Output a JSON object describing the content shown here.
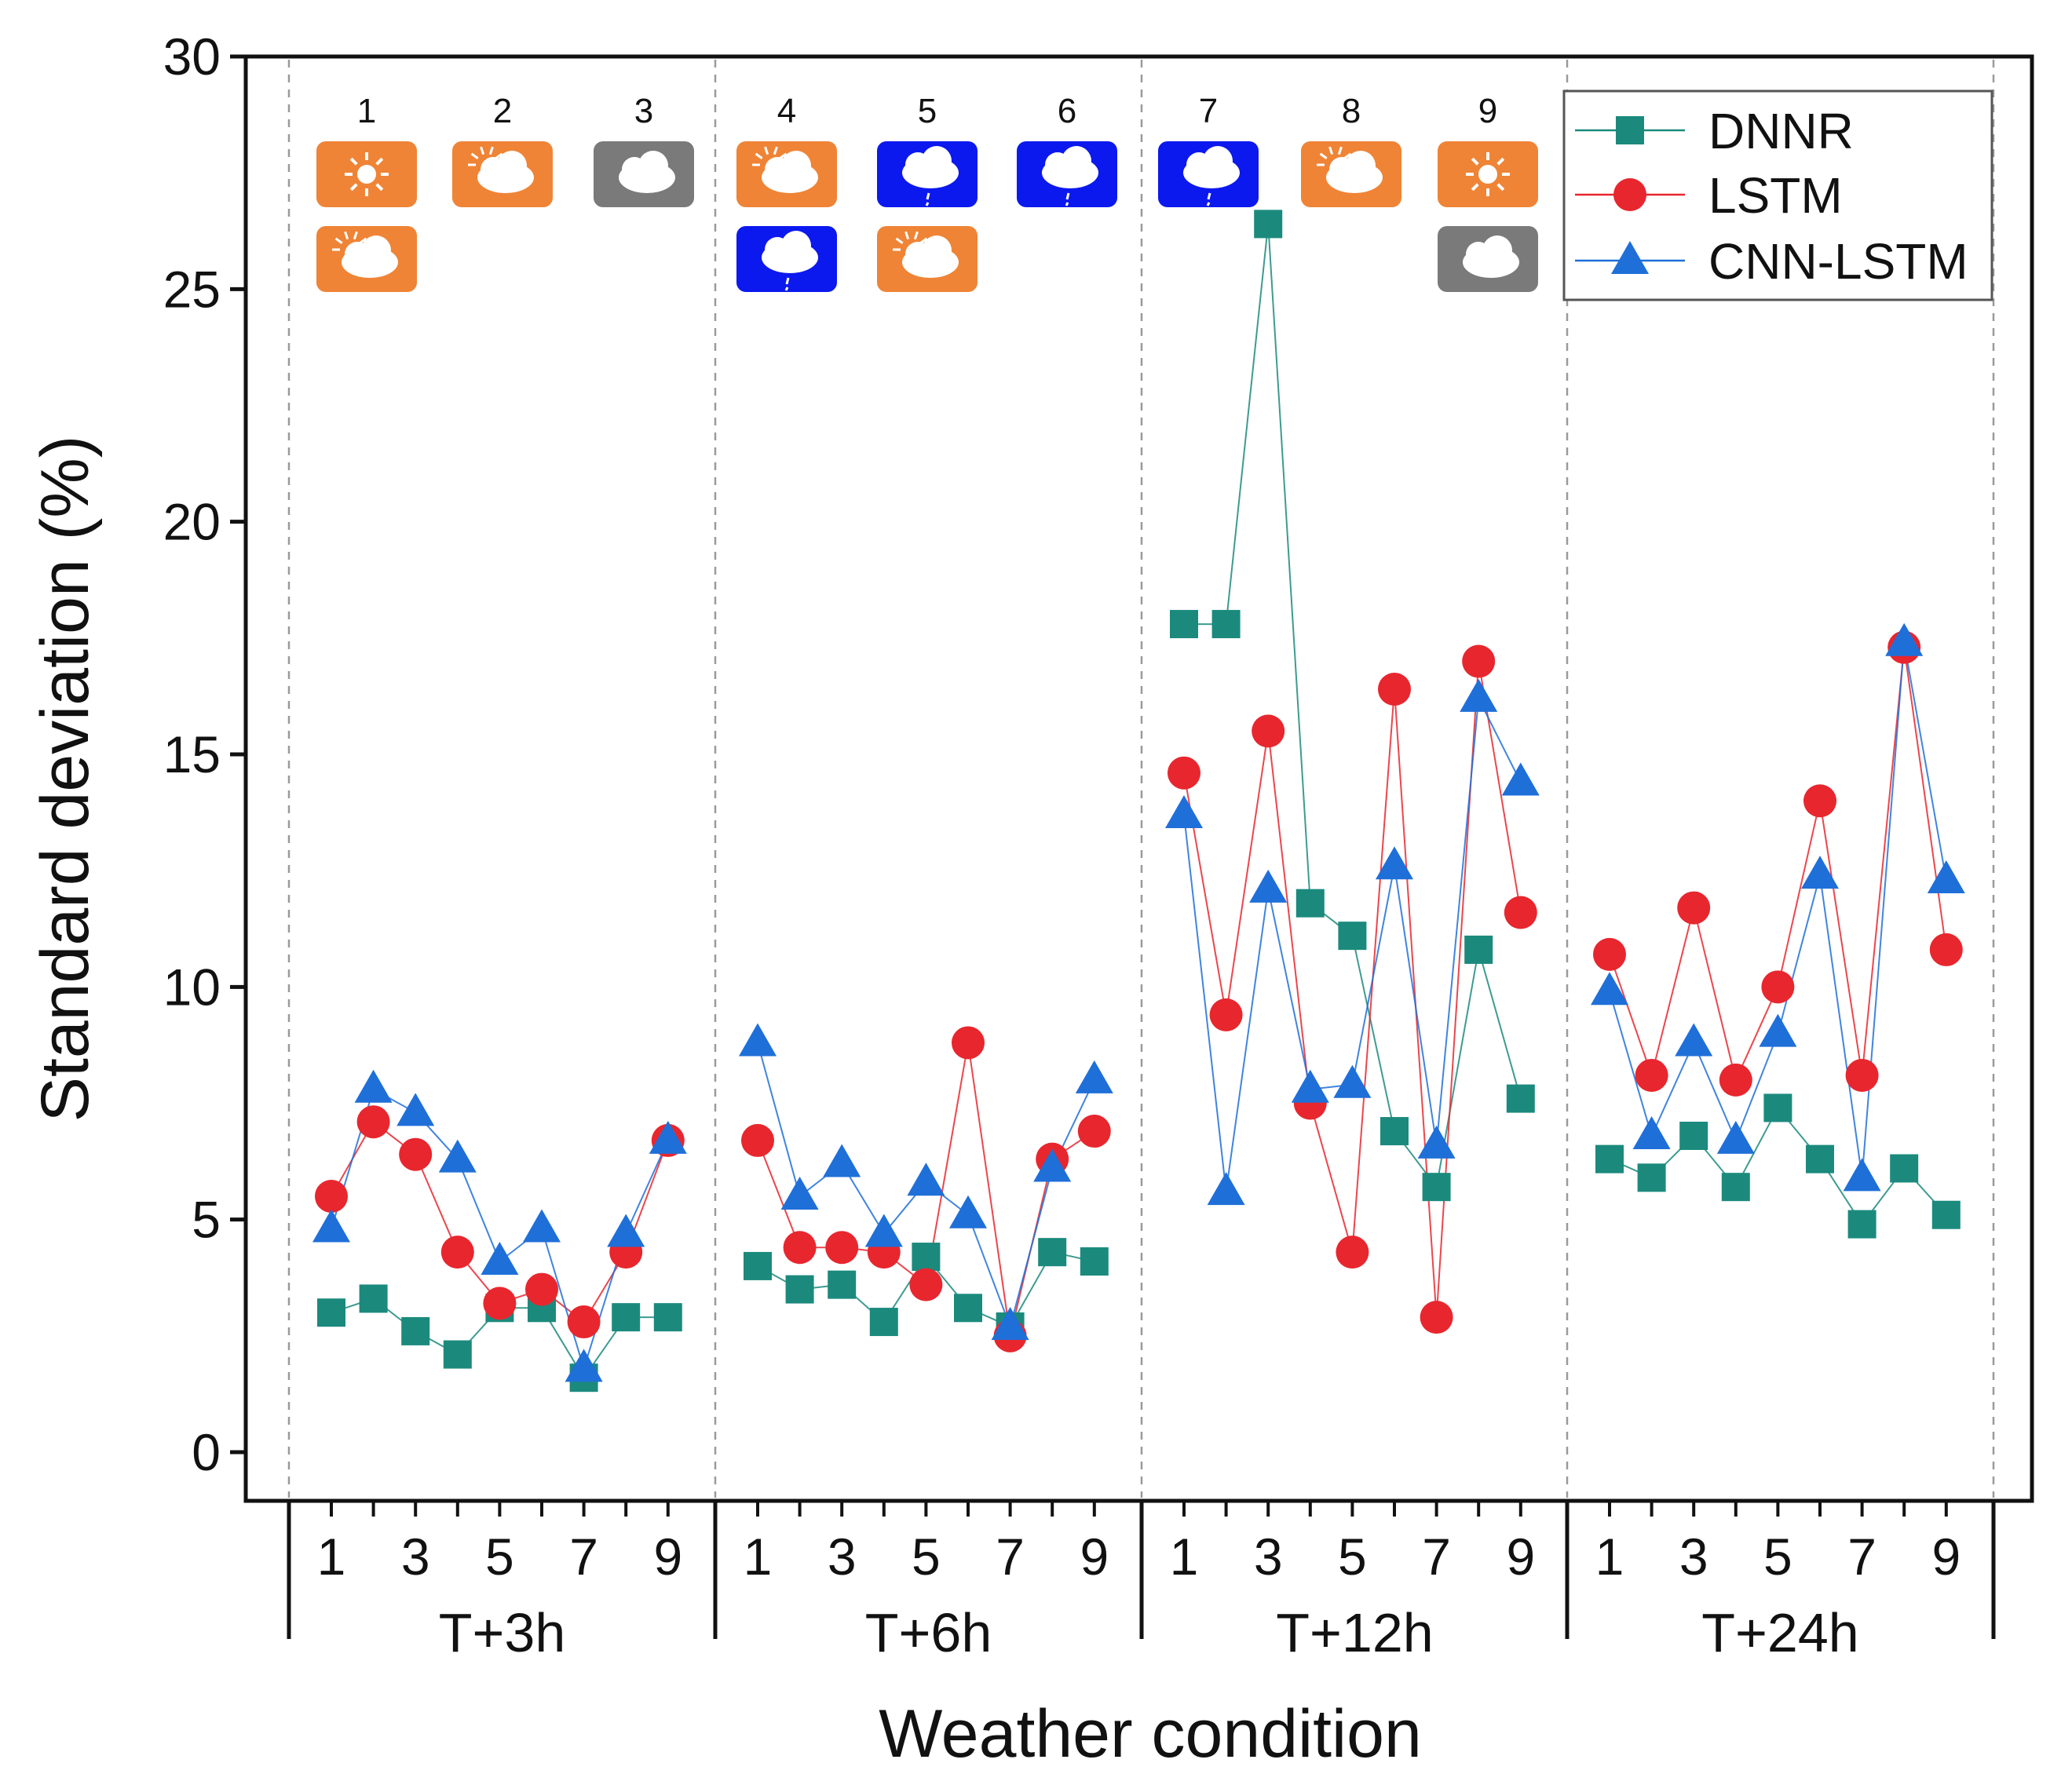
{
  "chart_data": {
    "type": "line",
    "title": "",
    "xlabel": "Weather condition",
    "ylabel": "Standard deviation (%)",
    "ylim": [
      0,
      30
    ],
    "yticks": [
      "0",
      "5",
      "10",
      "15",
      "20",
      "25",
      "30"
    ],
    "grid": "vertical dashed separators between horizons",
    "legend_position": "top-right",
    "groups": [
      "T+3h",
      "T+6h",
      "T+12h",
      "T+24h"
    ],
    "x": [
      1,
      2,
      3,
      4,
      5,
      6,
      7,
      8,
      9
    ],
    "xtick_labels": [
      "1",
      "3",
      "5",
      "7",
      "9"
    ],
    "series": [
      {
        "name": "DNNR",
        "color": "#1b8a7d",
        "marker": "square",
        "values": [
          [
            3.0,
            3.3,
            2.6,
            2.1,
            3.1,
            3.1,
            1.6,
            2.9,
            2.9
          ],
          [
            4.0,
            3.5,
            3.6,
            2.8,
            4.2,
            3.1,
            2.7,
            4.3,
            4.1
          ],
          [
            17.8,
            17.8,
            26.4,
            11.8,
            11.1,
            6.9,
            5.7,
            10.8,
            7.6
          ],
          [
            6.3,
            5.9,
            6.8,
            5.7,
            7.4,
            6.3,
            4.9,
            6.1,
            5.1
          ]
        ]
      },
      {
        "name": "LSTM",
        "color": "#e8262e",
        "marker": "circle",
        "values": [
          [
            5.5,
            7.1,
            6.4,
            4.3,
            3.2,
            3.5,
            2.8,
            4.3,
            6.7
          ],
          [
            6.7,
            4.4,
            4.4,
            4.3,
            3.6,
            8.8,
            2.5,
            6.3,
            6.9
          ],
          [
            14.6,
            9.4,
            15.5,
            7.5,
            4.3,
            16.4,
            2.9,
            17.0,
            11.6
          ],
          [
            10.7,
            8.1,
            11.7,
            8.0,
            10.0,
            14.0,
            8.1,
            17.3,
            10.8
          ]
        ]
      },
      {
        "name": "CNN-LSTM",
        "color": "#1f6fd8",
        "marker": "triangle",
        "values": [
          [
            4.8,
            7.8,
            7.3,
            6.3,
            4.1,
            4.8,
            1.8,
            4.7,
            6.7
          ],
          [
            8.8,
            5.5,
            6.2,
            4.7,
            5.8,
            5.1,
            2.7,
            6.1,
            8.0
          ],
          [
            13.7,
            5.6,
            12.1,
            7.8,
            7.9,
            12.6,
            6.6,
            16.2,
            14.4
          ],
          [
            9.9,
            6.8,
            8.8,
            6.7,
            9.0,
            12.4,
            5.9,
            17.4,
            12.3
          ]
        ]
      }
    ],
    "weather_icons": [
      {
        "num": "1",
        "icons": [
          "sunny",
          "partly-cloudy"
        ]
      },
      {
        "num": "2",
        "icons": [
          "partly-cloudy"
        ]
      },
      {
        "num": "3",
        "icons": [
          "cloudy"
        ]
      },
      {
        "num": "4",
        "icons": [
          "partly-cloudy",
          "rainy"
        ]
      },
      {
        "num": "5",
        "icons": [
          "rainy",
          "partly-cloudy"
        ]
      },
      {
        "num": "6",
        "icons": [
          "rainy"
        ]
      },
      {
        "num": "7",
        "icons": [
          "rainy"
        ]
      },
      {
        "num": "8",
        "icons": [
          "partly-cloudy"
        ]
      },
      {
        "num": "9",
        "icons": [
          "sunny",
          "cloudy"
        ]
      }
    ],
    "icon_colors": {
      "sunny": "#ef8436",
      "partly-cloudy": "#ef8436",
      "cloudy": "#7a7a7a",
      "rainy": "#0b19ee"
    }
  }
}
